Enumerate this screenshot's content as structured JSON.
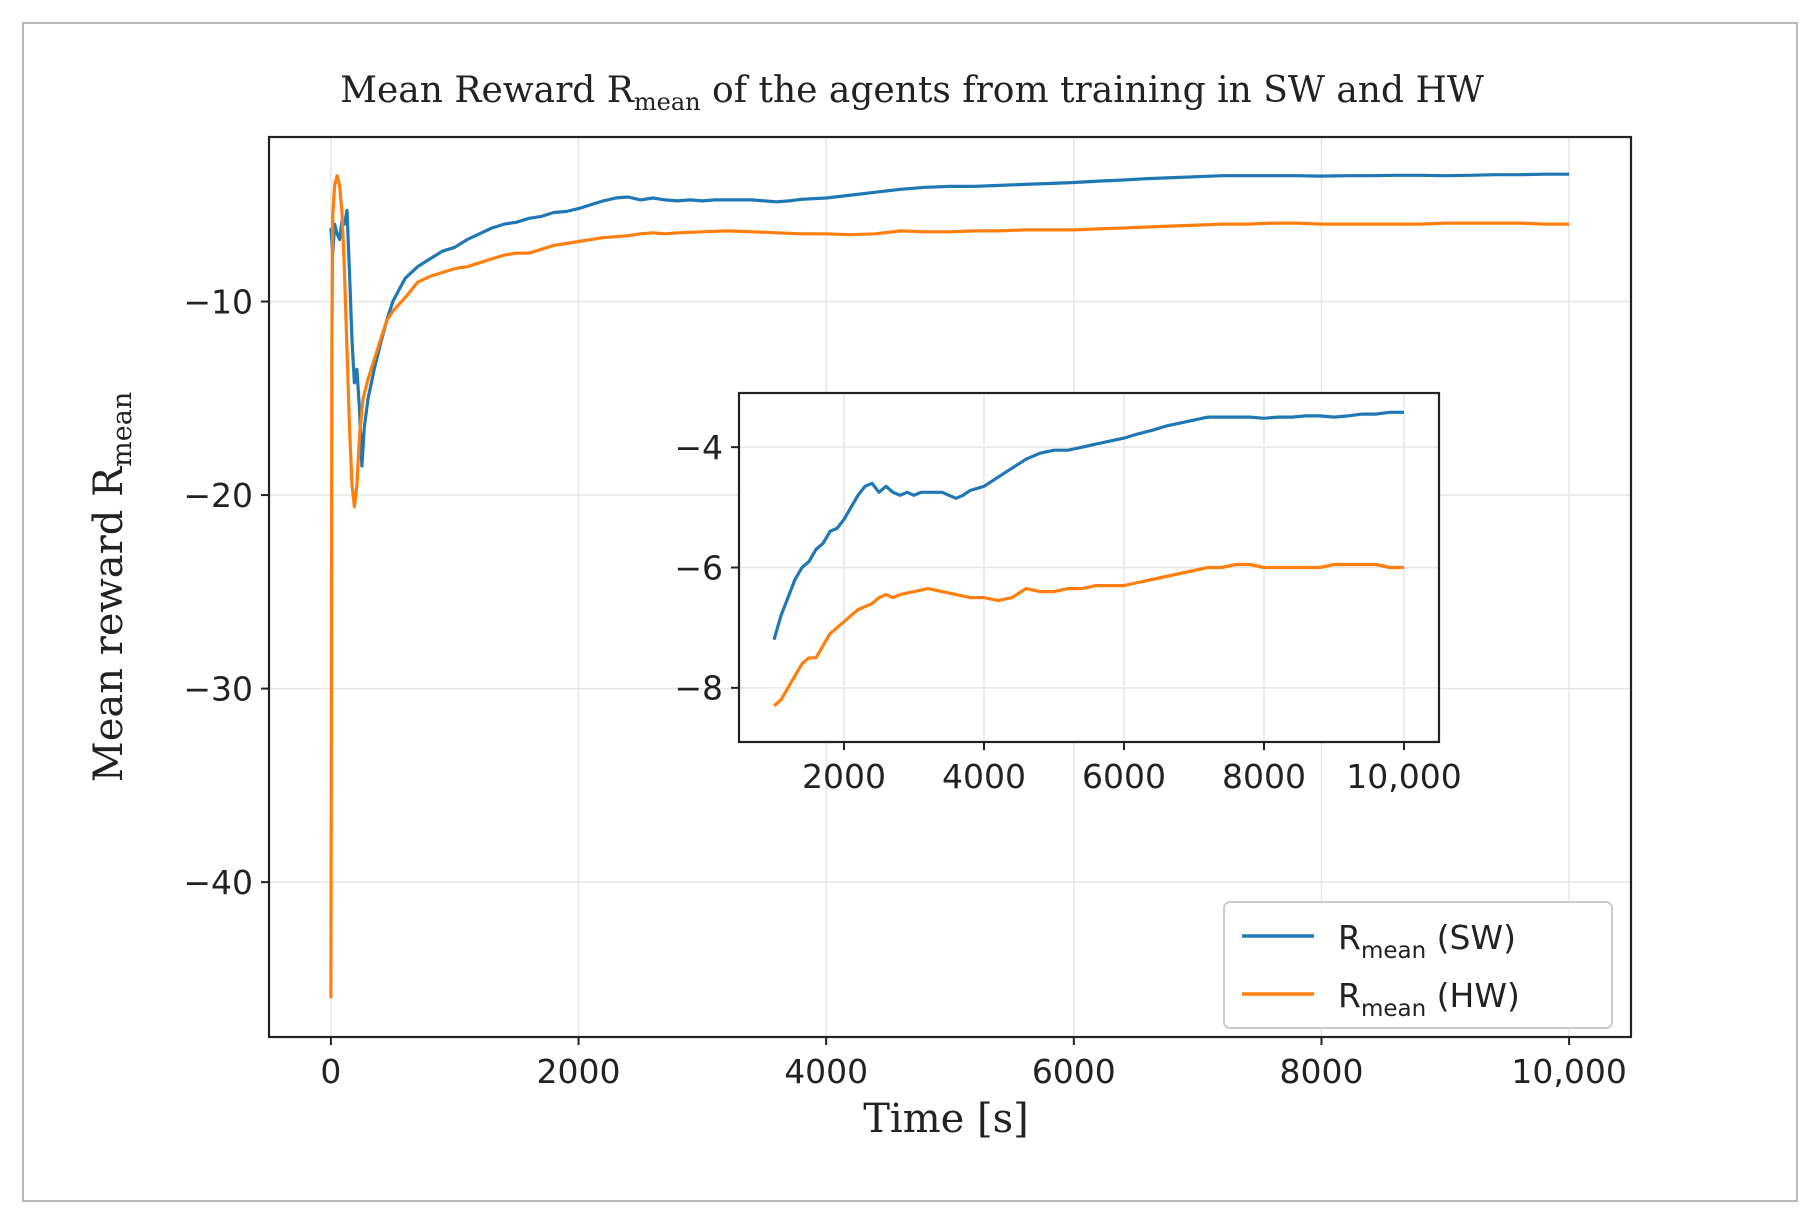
{
  "chart_data": {
    "type": "line",
    "title": {
      "main": "Mean Reward R",
      "sub": "mean",
      "rest": " of the agents from training in SW and HW"
    },
    "xlabel": "Time [s]",
    "ylabel": {
      "main": "Mean reward R",
      "sub": "mean"
    },
    "xlim": [
      -500,
      10500
    ],
    "ylim": [
      -48,
      -1.5
    ],
    "xticks": [
      {
        "value": 0,
        "label": "0"
      },
      {
        "value": 2000,
        "label": "2000"
      },
      {
        "value": 4000,
        "label": "4000"
      },
      {
        "value": 6000,
        "label": "6000"
      },
      {
        "value": 8000,
        "label": "8000"
      },
      {
        "value": 10000,
        "label": "10,000"
      }
    ],
    "yticks": [
      {
        "value": -10,
        "label": "−10"
      },
      {
        "value": -20,
        "label": "−20"
      },
      {
        "value": -30,
        "label": "−30"
      },
      {
        "value": -40,
        "label": "−40"
      }
    ],
    "grid": true,
    "legend_position": "lower-right",
    "series": [
      {
        "name": "R",
        "name_sub": "mean",
        "name_suffix": " (SW)",
        "color": "#1f77b4",
        "points": [
          [
            0,
            -6.2
          ],
          [
            15,
            -7.5
          ],
          [
            30,
            -6.0
          ],
          [
            50,
            -6.5
          ],
          [
            70,
            -6.8
          ],
          [
            90,
            -5.8
          ],
          [
            110,
            -6.0
          ],
          [
            130,
            -5.3
          ],
          [
            150,
            -8.5
          ],
          [
            170,
            -12.0
          ],
          [
            190,
            -14.2
          ],
          [
            210,
            -13.5
          ],
          [
            230,
            -15.5
          ],
          [
            250,
            -18.5
          ],
          [
            270,
            -16.5
          ],
          [
            300,
            -15.0
          ],
          [
            350,
            -13.5
          ],
          [
            400,
            -12.2
          ],
          [
            450,
            -11.0
          ],
          [
            500,
            -10.0
          ],
          [
            600,
            -8.8
          ],
          [
            700,
            -8.2
          ],
          [
            800,
            -7.8
          ],
          [
            900,
            -7.4
          ],
          [
            1000,
            -7.2
          ],
          [
            1100,
            -6.8
          ],
          [
            1200,
            -6.5
          ],
          [
            1300,
            -6.2
          ],
          [
            1400,
            -6.0
          ],
          [
            1500,
            -5.9
          ],
          [
            1600,
            -5.7
          ],
          [
            1700,
            -5.6
          ],
          [
            1800,
            -5.4
          ],
          [
            1900,
            -5.35
          ],
          [
            2000,
            -5.2
          ],
          [
            2100,
            -5.0
          ],
          [
            2200,
            -4.8
          ],
          [
            2300,
            -4.65
          ],
          [
            2400,
            -4.6
          ],
          [
            2500,
            -4.75
          ],
          [
            2600,
            -4.65
          ],
          [
            2700,
            -4.75
          ],
          [
            2800,
            -4.8
          ],
          [
            2900,
            -4.75
          ],
          [
            3000,
            -4.8
          ],
          [
            3100,
            -4.75
          ],
          [
            3200,
            -4.75
          ],
          [
            3300,
            -4.75
          ],
          [
            3400,
            -4.75
          ],
          [
            3500,
            -4.8
          ],
          [
            3600,
            -4.85
          ],
          [
            3700,
            -4.8
          ],
          [
            3800,
            -4.72
          ],
          [
            4000,
            -4.65
          ],
          [
            4200,
            -4.5
          ],
          [
            4400,
            -4.35
          ],
          [
            4600,
            -4.2
          ],
          [
            4800,
            -4.1
          ],
          [
            5000,
            -4.05
          ],
          [
            5200,
            -4.05
          ],
          [
            5400,
            -4.0
          ],
          [
            5600,
            -3.95
          ],
          [
            5800,
            -3.9
          ],
          [
            6000,
            -3.85
          ],
          [
            6200,
            -3.78
          ],
          [
            6400,
            -3.72
          ],
          [
            6600,
            -3.65
          ],
          [
            6800,
            -3.6
          ],
          [
            7000,
            -3.55
          ],
          [
            7200,
            -3.5
          ],
          [
            7400,
            -3.5
          ],
          [
            7600,
            -3.5
          ],
          [
            7800,
            -3.5
          ],
          [
            8000,
            -3.52
          ],
          [
            8200,
            -3.5
          ],
          [
            8400,
            -3.5
          ],
          [
            8600,
            -3.48
          ],
          [
            8800,
            -3.48
          ],
          [
            9000,
            -3.5
          ],
          [
            9200,
            -3.48
          ],
          [
            9400,
            -3.45
          ],
          [
            9600,
            -3.45
          ],
          [
            9800,
            -3.42
          ],
          [
            10000,
            -3.42
          ]
        ]
      },
      {
        "name": "R",
        "name_sub": "mean",
        "name_suffix": " (HW)",
        "color": "#ff7f0e",
        "points": [
          [
            0,
            -46.0
          ],
          [
            8,
            -12.0
          ],
          [
            15,
            -5.5
          ],
          [
            30,
            -4.0
          ],
          [
            50,
            -3.5
          ],
          [
            70,
            -4.0
          ],
          [
            90,
            -5.5
          ],
          [
            110,
            -8.5
          ],
          [
            130,
            -12.5
          ],
          [
            150,
            -16.5
          ],
          [
            170,
            -19.5
          ],
          [
            190,
            -20.6
          ],
          [
            210,
            -19.5
          ],
          [
            230,
            -17.0
          ],
          [
            260,
            -15.0
          ],
          [
            300,
            -14.0
          ],
          [
            350,
            -13.0
          ],
          [
            400,
            -12.0
          ],
          [
            450,
            -11.0
          ],
          [
            500,
            -10.5
          ],
          [
            600,
            -9.8
          ],
          [
            700,
            -9.0
          ],
          [
            800,
            -8.7
          ],
          [
            900,
            -8.5
          ],
          [
            1000,
            -8.3
          ],
          [
            1100,
            -8.2
          ],
          [
            1200,
            -8.0
          ],
          [
            1300,
            -7.8
          ],
          [
            1400,
            -7.6
          ],
          [
            1500,
            -7.5
          ],
          [
            1600,
            -7.5
          ],
          [
            1700,
            -7.3
          ],
          [
            1800,
            -7.1
          ],
          [
            1900,
            -7.0
          ],
          [
            2000,
            -6.9
          ],
          [
            2100,
            -6.8
          ],
          [
            2200,
            -6.7
          ],
          [
            2300,
            -6.65
          ],
          [
            2400,
            -6.6
          ],
          [
            2500,
            -6.5
          ],
          [
            2600,
            -6.45
          ],
          [
            2700,
            -6.5
          ],
          [
            2800,
            -6.45
          ],
          [
            3000,
            -6.4
          ],
          [
            3200,
            -6.35
          ],
          [
            3400,
            -6.4
          ],
          [
            3600,
            -6.45
          ],
          [
            3800,
            -6.5
          ],
          [
            4000,
            -6.5
          ],
          [
            4200,
            -6.55
          ],
          [
            4400,
            -6.5
          ],
          [
            4600,
            -6.35
          ],
          [
            4800,
            -6.4
          ],
          [
            5000,
            -6.4
          ],
          [
            5200,
            -6.35
          ],
          [
            5400,
            -6.35
          ],
          [
            5600,
            -6.3
          ],
          [
            5800,
            -6.3
          ],
          [
            6000,
            -6.3
          ],
          [
            6200,
            -6.25
          ],
          [
            6400,
            -6.2
          ],
          [
            6600,
            -6.15
          ],
          [
            6800,
            -6.1
          ],
          [
            7000,
            -6.05
          ],
          [
            7200,
            -6.0
          ],
          [
            7400,
            -6.0
          ],
          [
            7600,
            -5.95
          ],
          [
            7800,
            -5.95
          ],
          [
            8000,
            -6.0
          ],
          [
            8200,
            -6.0
          ],
          [
            8400,
            -6.0
          ],
          [
            8600,
            -6.0
          ],
          [
            8800,
            -6.0
          ],
          [
            9000,
            -5.95
          ],
          [
            9200,
            -5.95
          ],
          [
            9400,
            -5.95
          ],
          [
            9600,
            -5.95
          ],
          [
            9800,
            -6.0
          ],
          [
            10000,
            -6.0
          ]
        ]
      }
    ],
    "inset": {
      "xlim": [
        500,
        10500
      ],
      "ylim": [
        -8.9,
        -3.1
      ],
      "xticks": [
        {
          "value": 2000,
          "label": "2000"
        },
        {
          "value": 4000,
          "label": "4000"
        },
        {
          "value": 6000,
          "label": "6000"
        },
        {
          "value": 8000,
          "label": "8000"
        },
        {
          "value": 10000,
          "label": "10,000"
        }
      ],
      "yticks": [
        {
          "value": -4,
          "label": "−4"
        },
        {
          "value": -6,
          "label": "−6"
        },
        {
          "value": -8,
          "label": "−8"
        }
      ],
      "grid": true,
      "x_from": 1000
    }
  }
}
